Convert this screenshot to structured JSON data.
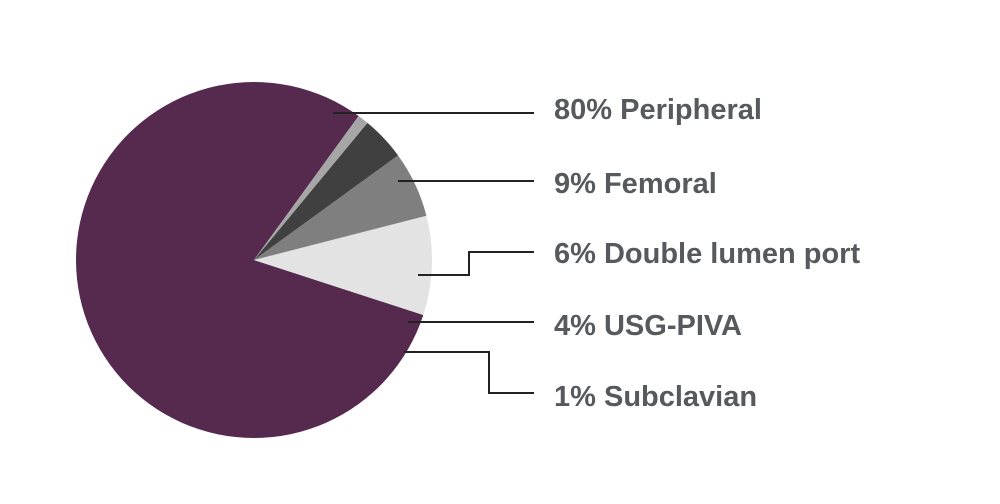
{
  "chart_data": {
    "type": "pie",
    "slices": [
      {
        "label": "80% Peripheral",
        "value": 80,
        "color": "#552a4e"
      },
      {
        "label": "9% Femoral",
        "value": 9,
        "color": "#e3e3e3"
      },
      {
        "label": "6% Double lumen port",
        "value": 6,
        "color": "#7f7f7f"
      },
      {
        "label": "4% USG-PIVA",
        "value": 4,
        "color": "#404040"
      },
      {
        "label": "1% Subclavian",
        "value": 1,
        "color": "#a6a6a6"
      }
    ],
    "legend_position": "right",
    "label_color": "#565a5e",
    "leader_line_color": "#222222"
  }
}
